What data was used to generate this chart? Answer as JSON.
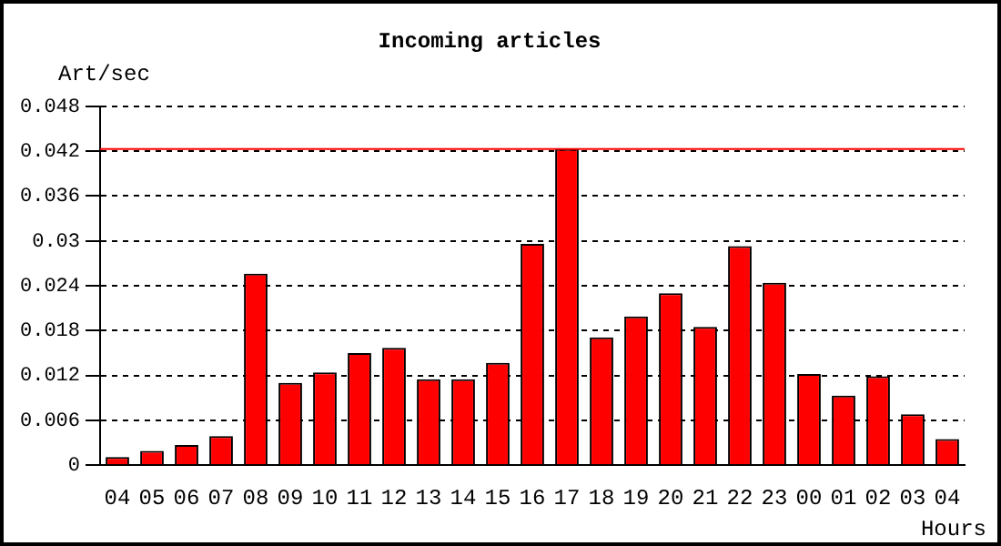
{
  "chart_data": {
    "type": "bar",
    "title": "Incoming articles",
    "ylabel": "Art/sec",
    "xlabel": "Hours",
    "categories": [
      "04",
      "05",
      "06",
      "07",
      "08",
      "09",
      "10",
      "11",
      "12",
      "13",
      "14",
      "15",
      "16",
      "17",
      "18",
      "19",
      "20",
      "21",
      "22",
      "23",
      "00",
      "01",
      "02",
      "03",
      "04"
    ],
    "values": [
      0.0011,
      0.0019,
      0.0027,
      0.0039,
      0.0256,
      0.011,
      0.0124,
      0.015,
      0.0157,
      0.0115,
      0.0115,
      0.0137,
      0.0296,
      0.0423,
      0.0171,
      0.0199,
      0.023,
      0.0185,
      0.0293,
      0.0244,
      0.0122,
      0.0093,
      0.0119,
      0.0068,
      0.0035
    ],
    "color": "#ff0000",
    "ylim": [
      0,
      0.048
    ],
    "yticks": [
      0,
      0.006,
      0.012,
      0.018,
      0.024,
      0.03,
      0.036,
      0.042,
      0.048
    ],
    "grid": "y",
    "line_style": "dotted",
    "legend": false,
    "ref_lines": [
      {
        "axis": "y",
        "value": 0.0423,
        "color": "#ff0000"
      }
    ]
  }
}
